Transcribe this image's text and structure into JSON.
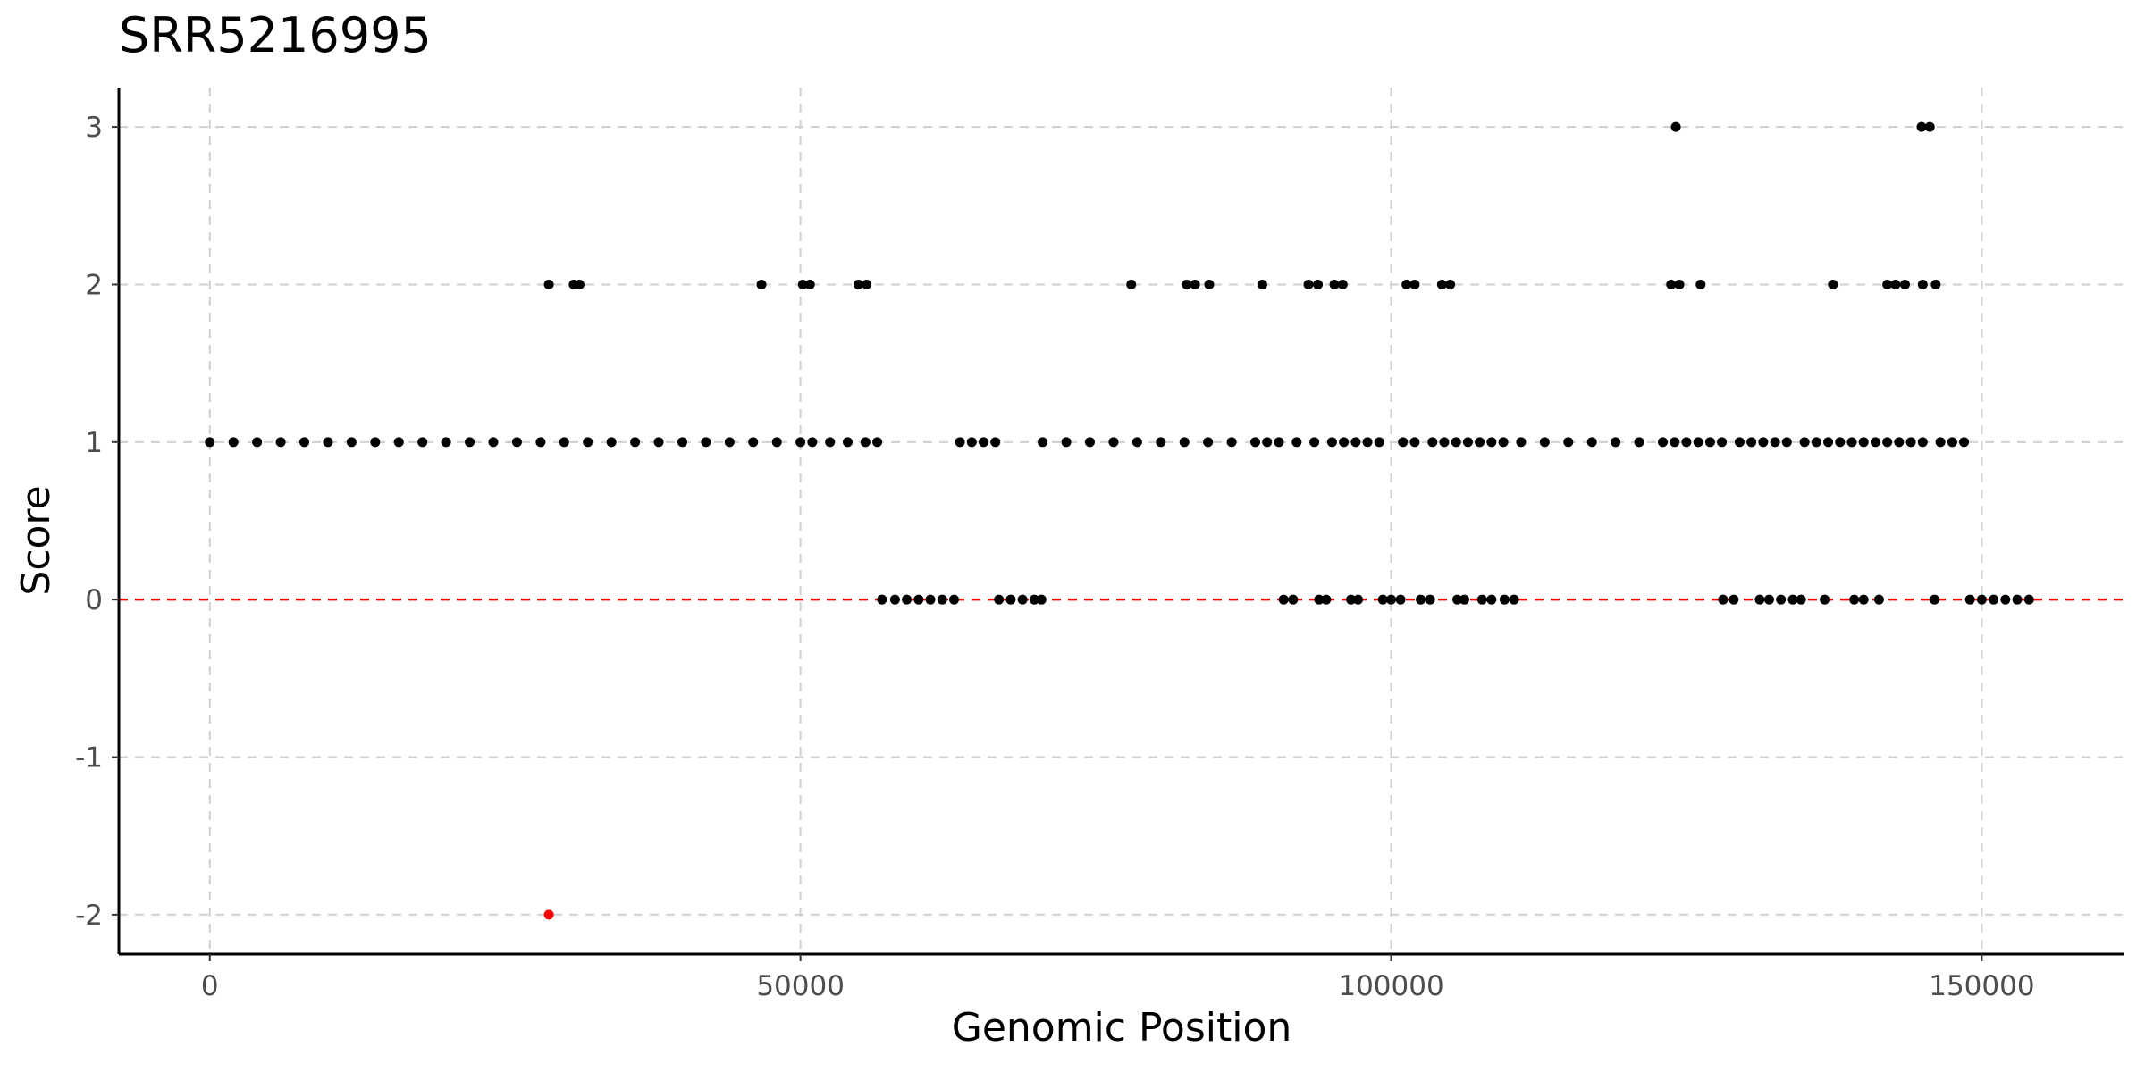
{
  "chart_data": {
    "type": "scatter",
    "title": "SRR5216995",
    "xlabel": "Genomic Position",
    "ylabel": "Score",
    "xlim": [
      -7700,
      162000
    ],
    "ylim": [
      -2.25,
      3.25
    ],
    "x_ticks": [
      0,
      50000,
      100000,
      150000
    ],
    "x_tick_labels": [
      "0",
      "50000",
      "100000",
      "150000"
    ],
    "y_ticks": [
      -2,
      -1,
      0,
      1,
      2,
      3
    ],
    "y_tick_labels": [
      "-2",
      "-1",
      "0",
      "1",
      "2",
      "3"
    ],
    "grid": true,
    "reference_line": {
      "y": 0,
      "color": "#ff0000",
      "style": "dashed"
    },
    "point_color": "#000000",
    "highlight_color": "#ff0000",
    "series": [
      {
        "color": "#000000",
        "points": [
          [
            0,
            1
          ],
          [
            2000,
            1
          ],
          [
            4000,
            1
          ],
          [
            6000,
            1
          ],
          [
            8000,
            1
          ],
          [
            10000,
            1
          ],
          [
            12000,
            1
          ],
          [
            14000,
            1
          ],
          [
            16000,
            1
          ],
          [
            18000,
            1
          ],
          [
            20000,
            1
          ],
          [
            22000,
            1
          ],
          [
            24000,
            1
          ],
          [
            26000,
            1
          ],
          [
            28000,
            1
          ],
          [
            30000,
            1
          ],
          [
            32000,
            1
          ],
          [
            34000,
            1
          ],
          [
            36000,
            1
          ],
          [
            38000,
            1
          ],
          [
            40000,
            1
          ],
          [
            42000,
            1
          ],
          [
            44000,
            1
          ],
          [
            46000,
            1
          ],
          [
            48000,
            1
          ],
          [
            50000,
            1
          ],
          [
            51000,
            1
          ],
          [
            52500,
            1
          ],
          [
            54000,
            1
          ],
          [
            55500,
            1
          ],
          [
            56500,
            1
          ],
          [
            63500,
            1
          ],
          [
            64500,
            1
          ],
          [
            65500,
            1
          ],
          [
            66500,
            1
          ],
          [
            70500,
            1
          ],
          [
            72500,
            1
          ],
          [
            74500,
            1
          ],
          [
            76500,
            1
          ],
          [
            78500,
            1
          ],
          [
            80500,
            1
          ],
          [
            82500,
            1
          ],
          [
            84500,
            1
          ],
          [
            86500,
            1
          ],
          [
            88500,
            1
          ],
          [
            89500,
            1
          ],
          [
            90500,
            1
          ],
          [
            92000,
            1
          ],
          [
            93500,
            1
          ],
          [
            95000,
            1
          ],
          [
            96000,
            1
          ],
          [
            97000,
            1
          ],
          [
            98000,
            1
          ],
          [
            99000,
            1
          ],
          [
            101000,
            1
          ],
          [
            102000,
            1
          ],
          [
            103500,
            1
          ],
          [
            104500,
            1
          ],
          [
            105500,
            1
          ],
          [
            106500,
            1
          ],
          [
            107500,
            1
          ],
          [
            108500,
            1
          ],
          [
            109500,
            1
          ],
          [
            111000,
            1
          ],
          [
            113000,
            1
          ],
          [
            115000,
            1
          ],
          [
            117000,
            1
          ],
          [
            119000,
            1
          ],
          [
            121000,
            1
          ],
          [
            123000,
            1
          ],
          [
            124000,
            1
          ],
          [
            125000,
            1
          ],
          [
            126000,
            1
          ],
          [
            127000,
            1
          ],
          [
            128000,
            1
          ],
          [
            129500,
            1
          ],
          [
            130500,
            1
          ],
          [
            131500,
            1
          ],
          [
            132500,
            1
          ],
          [
            133500,
            1
          ],
          [
            135000,
            1
          ],
          [
            136000,
            1
          ],
          [
            137000,
            1
          ],
          [
            138000,
            1
          ],
          [
            139000,
            1
          ],
          [
            140000,
            1
          ],
          [
            141000,
            1
          ],
          [
            142000,
            1
          ],
          [
            143000,
            1
          ],
          [
            144000,
            1
          ],
          [
            145000,
            1
          ],
          [
            146500,
            1
          ],
          [
            147500,
            1
          ],
          [
            148500,
            1
          ],
          [
            28700,
            2
          ],
          [
            30800,
            2
          ],
          [
            31300,
            2
          ],
          [
            46700,
            2
          ],
          [
            50200,
            2
          ],
          [
            50800,
            2
          ],
          [
            54900,
            2
          ],
          [
            55600,
            2
          ],
          [
            78000,
            2
          ],
          [
            82700,
            2
          ],
          [
            83400,
            2
          ],
          [
            84600,
            2
          ],
          [
            89100,
            2
          ],
          [
            93000,
            2
          ],
          [
            93800,
            2
          ],
          [
            95200,
            2
          ],
          [
            95900,
            2
          ],
          [
            101300,
            2
          ],
          [
            102000,
            2
          ],
          [
            104300,
            2
          ],
          [
            105000,
            2
          ],
          [
            123700,
            2
          ],
          [
            124400,
            2
          ],
          [
            126200,
            2
          ],
          [
            137400,
            2
          ],
          [
            142000,
            2
          ],
          [
            142700,
            2
          ],
          [
            143500,
            2
          ],
          [
            145000,
            2
          ],
          [
            146100,
            2
          ],
          [
            124100,
            3
          ],
          [
            144900,
            3
          ],
          [
            145600,
            3
          ],
          [
            56900,
            0
          ],
          [
            58000,
            0
          ],
          [
            59000,
            0
          ],
          [
            60000,
            0
          ],
          [
            61000,
            0
          ],
          [
            62000,
            0
          ],
          [
            63000,
            0
          ],
          [
            66800,
            0
          ],
          [
            67800,
            0
          ],
          [
            68800,
            0
          ],
          [
            69800,
            0
          ],
          [
            70400,
            0
          ],
          [
            90900,
            0
          ],
          [
            91700,
            0
          ],
          [
            93900,
            0
          ],
          [
            94500,
            0
          ],
          [
            96600,
            0
          ],
          [
            97200,
            0
          ],
          [
            99300,
            0
          ],
          [
            100000,
            0
          ],
          [
            100800,
            0
          ],
          [
            102500,
            0
          ],
          [
            103300,
            0
          ],
          [
            105600,
            0
          ],
          [
            106200,
            0
          ],
          [
            107700,
            0
          ],
          [
            108500,
            0
          ],
          [
            109600,
            0
          ],
          [
            110400,
            0
          ],
          [
            128100,
            0
          ],
          [
            129000,
            0
          ],
          [
            131200,
            0
          ],
          [
            132000,
            0
          ],
          [
            133000,
            0
          ],
          [
            134000,
            0
          ],
          [
            134700,
            0
          ],
          [
            136700,
            0
          ],
          [
            139200,
            0
          ],
          [
            140000,
            0
          ],
          [
            141300,
            0
          ],
          [
            146000,
            0
          ],
          [
            149000,
            0
          ],
          [
            150000,
            0
          ],
          [
            151000,
            0
          ],
          [
            152000,
            0
          ],
          [
            153000,
            0
          ],
          [
            154000,
            0
          ]
        ]
      },
      {
        "color": "#ff0000",
        "points": [
          [
            28700,
            -2
          ]
        ]
      }
    ]
  }
}
